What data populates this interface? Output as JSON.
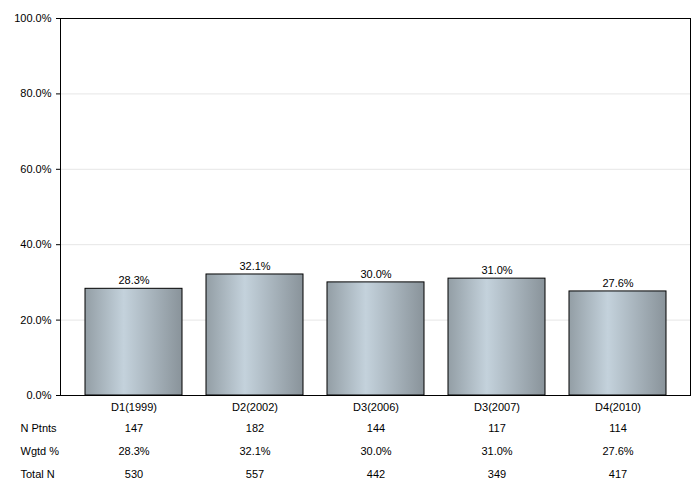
{
  "chart_data": {
    "type": "bar",
    "categories": [
      "D1(1999)",
      "D2(2002)",
      "D3(2006)",
      "D3(2007)",
      "D4(2010)"
    ],
    "values": [
      28.3,
      32.1,
      30.0,
      31.0,
      27.6
    ],
    "value_labels": [
      "28.3%",
      "32.1%",
      "30.0%",
      "31.0%",
      "27.6%"
    ],
    "data_labels": true,
    "color": "#c4d2dc",
    "ylim": [
      0,
      100
    ],
    "yticks": [
      {
        "value": 0,
        "label": "0.0%"
      },
      {
        "value": 20,
        "label": "20.0%"
      },
      {
        "value": 40,
        "label": "40.0%"
      },
      {
        "value": 60,
        "label": "60.0%"
      },
      {
        "value": 80,
        "label": "80.0%"
      },
      {
        "value": 100,
        "label": "100.0%"
      }
    ],
    "grid": true,
    "table_rows": [
      {
        "label": "N Ptnts",
        "values": [
          147,
          182,
          144,
          117,
          114
        ]
      },
      {
        "label": "Wgtd %",
        "values": [
          "28.3%",
          "32.1%",
          "30.0%",
          "31.0%",
          "27.6%"
        ]
      },
      {
        "label": "Total N",
        "values": [
          530,
          557,
          442,
          349,
          417
        ]
      }
    ]
  }
}
